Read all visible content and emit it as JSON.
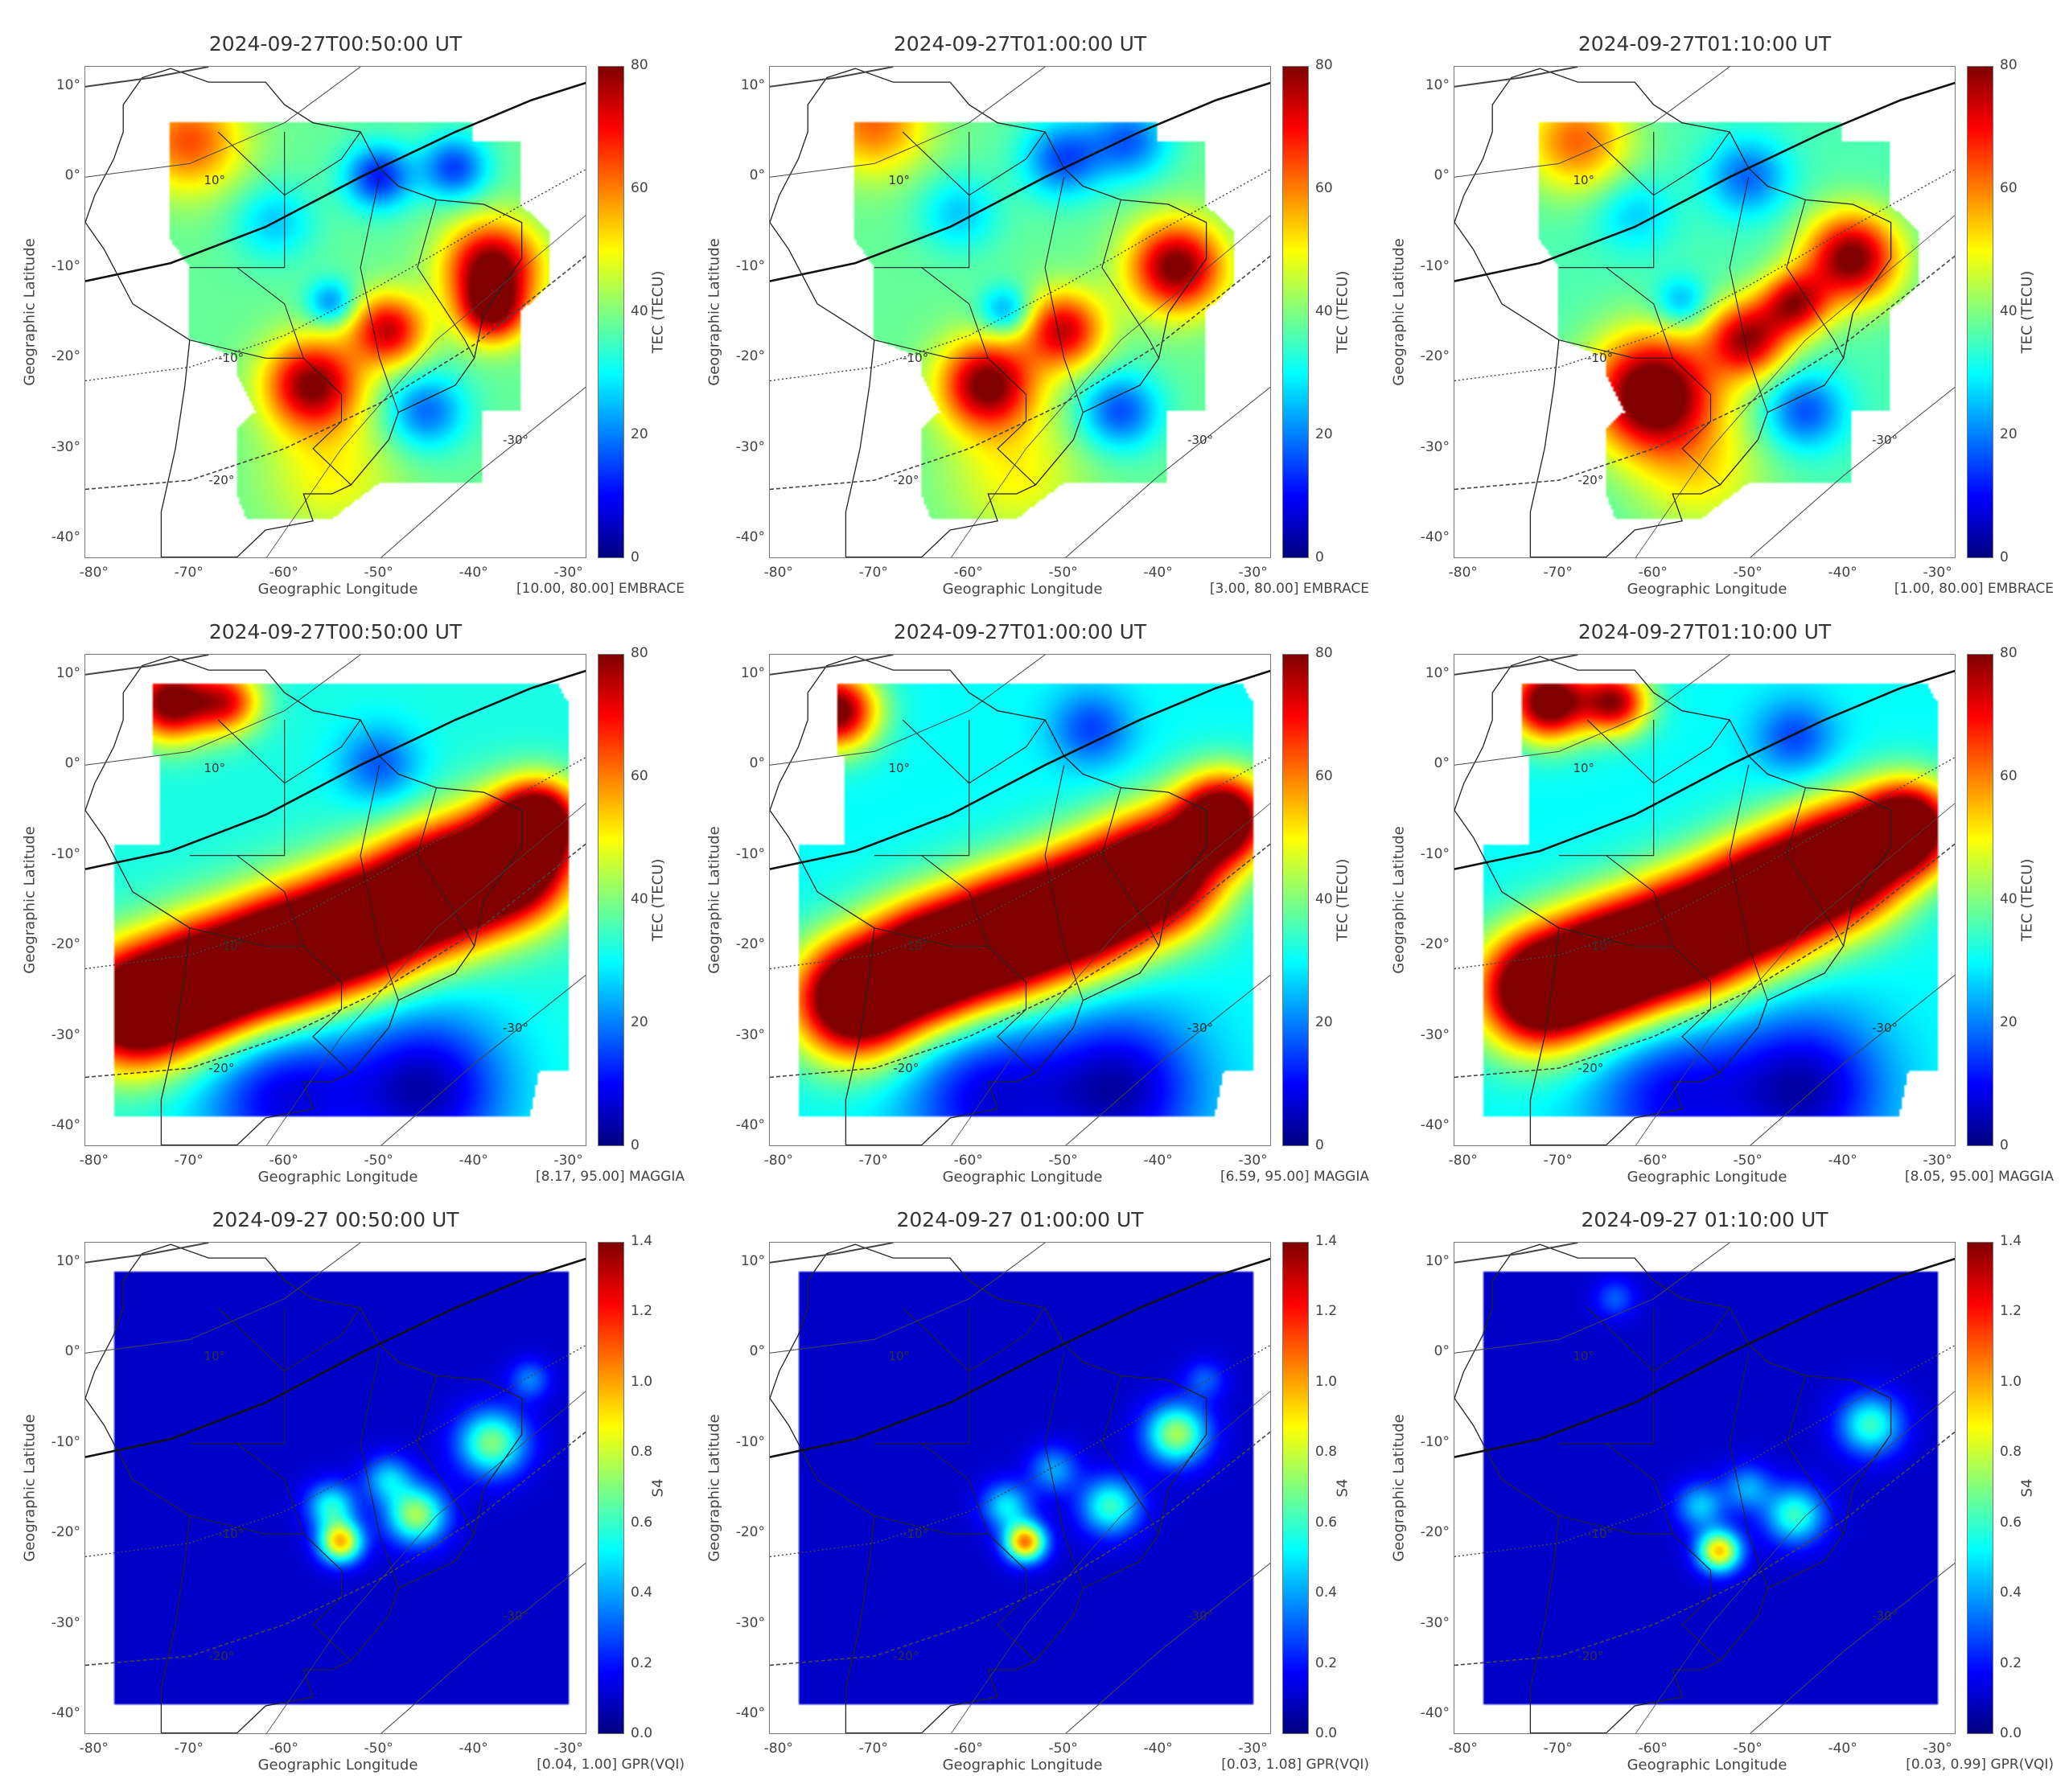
{
  "axes": {
    "xlabel": "Geographic Longitude",
    "ylabel": "Geographic Latitude",
    "lon_ticks": [
      "-80°",
      "-70°",
      "-60°",
      "-50°",
      "-40°",
      "-30°"
    ],
    "lat_ticks": [
      "10°",
      "0°",
      "-10°",
      "-20°",
      "-30°",
      "-40°"
    ],
    "contour_labels": [
      "10°",
      "-10°",
      "-20°",
      "-30°"
    ]
  },
  "colors": {
    "colormap": "jet",
    "coast": "#222222",
    "mag_equator": "#111111"
  },
  "panels": [
    {
      "title": "2024-09-27T00:50:00 UT",
      "cbar_label": "TEC (TECU)",
      "cbar_ticks": [
        "0",
        "20",
        "40",
        "60",
        "80"
      ],
      "vmax": 80,
      "annotation": "[10.00, 80.00] EMBRACE",
      "region": "embrace",
      "base": 38,
      "hotspots": [
        [
          -38,
          -10,
          82,
          3.5
        ],
        [
          -57,
          -23,
          80,
          3.5
        ],
        [
          -49,
          -17,
          74,
          2.8
        ],
        [
          -70,
          4,
          64,
          4
        ],
        [
          -45,
          -26,
          18,
          3
        ],
        [
          -55,
          -14,
          20,
          1.8
        ],
        [
          -50,
          0,
          12,
          2.5
        ],
        [
          -42,
          1,
          15,
          2.5
        ],
        [
          -61,
          -5,
          26,
          3
        ],
        [
          -55,
          -33,
          50,
          5
        ],
        [
          -38,
          -15,
          72,
          2.5
        ]
      ]
    },
    {
      "title": "2024-09-27T01:00:00 UT",
      "cbar_label": "TEC (TECU)",
      "cbar_ticks": [
        "0",
        "20",
        "40",
        "60",
        "80"
      ],
      "vmax": 80,
      "annotation": "[3.00, 80.00] EMBRACE",
      "region": "embrace",
      "base": 38,
      "hotspots": [
        [
          -38,
          -10,
          82,
          3.5
        ],
        [
          -58,
          -23,
          82,
          3.5
        ],
        [
          -50,
          -17,
          74,
          3
        ],
        [
          -70,
          6,
          62,
          4
        ],
        [
          -44,
          -26,
          16,
          3
        ],
        [
          -56,
          -15,
          20,
          2
        ],
        [
          -50,
          2,
          16,
          3
        ],
        [
          -43,
          4,
          18,
          3
        ],
        [
          -61,
          -4,
          26,
          3
        ],
        [
          -55,
          -33,
          50,
          5
        ]
      ]
    },
    {
      "title": "2024-09-27T01:10:00 UT",
      "cbar_label": "TEC (TECU)",
      "cbar_ticks": [
        "0",
        "20",
        "40",
        "60",
        "80"
      ],
      "vmax": 80,
      "annotation": "[1.00, 80.00] EMBRACE",
      "region": "embrace",
      "base": 36,
      "hotspots": [
        [
          -39,
          -9,
          82,
          3.5
        ],
        [
          -60,
          -24,
          90,
          4.5
        ],
        [
          -50,
          -18,
          76,
          3
        ],
        [
          -68,
          4,
          62,
          4
        ],
        [
          -44,
          -26,
          16,
          3
        ],
        [
          -57,
          -14,
          22,
          2
        ],
        [
          -50,
          0,
          18,
          3
        ],
        [
          -62,
          -4,
          26,
          3
        ],
        [
          -55,
          -33,
          50,
          5
        ],
        [
          -45,
          -14,
          72,
          2.5
        ]
      ]
    },
    {
      "title": "2024-09-27T00:50:00 UT",
      "cbar_label": "TEC (TECU)",
      "cbar_ticks": [
        "0",
        "20",
        "40",
        "60",
        "80"
      ],
      "vmax": 95,
      "annotation": "[8.17, 95.00] MAGGIA",
      "region": "maggia",
      "base": 38,
      "hotspots": [
        [
          -76,
          -27,
          120,
          4.5
        ],
        [
          -68,
          -24,
          120,
          4.5
        ],
        [
          -60,
          -21,
          120,
          4.5
        ],
        [
          -52,
          -18,
          120,
          4.5
        ],
        [
          -44,
          -14,
          120,
          4.5
        ],
        [
          -36,
          -11,
          120,
          4.5
        ],
        [
          -33,
          -6,
          95,
          3
        ],
        [
          -72,
          7,
          100,
          3
        ],
        [
          -66,
          7,
          80,
          2.5
        ],
        [
          -45,
          -36,
          5,
          6
        ],
        [
          -60,
          -37,
          10,
          6
        ],
        [
          -50,
          0,
          20,
          3
        ]
      ]
    },
    {
      "title": "2024-09-27T01:00:00 UT",
      "cbar_label": "TEC (TECU)",
      "cbar_ticks": [
        "0",
        "20",
        "40",
        "60",
        "80"
      ],
      "vmax": 95,
      "annotation": "[6.59, 95.00] MAGGIA",
      "region": "maggia",
      "base": 36,
      "hotspots": [
        [
          -72,
          -26,
          120,
          4.5
        ],
        [
          -64,
          -22,
          120,
          4.5
        ],
        [
          -56,
          -19,
          120,
          4.5
        ],
        [
          -48,
          -16,
          120,
          4.5
        ],
        [
          -40,
          -12,
          120,
          4.5
        ],
        [
          -33,
          -6,
          110,
          3.5
        ],
        [
          -74,
          6,
          100,
          3
        ],
        [
          -44,
          -36,
          5,
          6
        ],
        [
          -58,
          -37,
          10,
          6
        ],
        [
          -47,
          4,
          18,
          3
        ]
      ]
    },
    {
      "title": "2024-09-27T01:10:00 UT",
      "cbar_label": "TEC (TECU)",
      "cbar_ticks": [
        "0",
        "20",
        "40",
        "60",
        "80"
      ],
      "vmax": 95,
      "annotation": "[8.05, 95.00] MAGGIA",
      "region": "maggia",
      "base": 36,
      "hotspots": [
        [
          -72,
          -25,
          120,
          4.5
        ],
        [
          -64,
          -22,
          120,
          4.5
        ],
        [
          -56,
          -19,
          120,
          4.5
        ],
        [
          -48,
          -15,
          120,
          4.5
        ],
        [
          -40,
          -11,
          120,
          4.5
        ],
        [
          -33,
          -7,
          115,
          3.5
        ],
        [
          -71,
          7,
          105,
          3
        ],
        [
          -64,
          7,
          90,
          2.5
        ],
        [
          -44,
          -36,
          5,
          6
        ],
        [
          -58,
          -37,
          12,
          6
        ],
        [
          -45,
          3,
          18,
          3
        ]
      ]
    },
    {
      "title": "2024-09-27 00:50:00 UT",
      "cbar_label": "S4",
      "cbar_ticks": [
        "0.0",
        "0.2",
        "0.4",
        "0.6",
        "0.8",
        "1.0",
        "1.2",
        "1.4"
      ],
      "vmax": 1.4,
      "annotation": "[0.04, 1.00] GPR(VQI)",
      "region": "gpr",
      "base": 0.1,
      "hotspots": [
        [
          -54,
          -21,
          0.95,
          1.6
        ],
        [
          -55,
          -17,
          0.55,
          1.8
        ],
        [
          -46,
          -18,
          0.75,
          2.2
        ],
        [
          -49,
          -14,
          0.45,
          1.8
        ],
        [
          -38,
          -10,
          0.7,
          2.5
        ],
        [
          -34,
          -3,
          0.35,
          1.5
        ]
      ]
    },
    {
      "title": "2024-09-27 01:00:00 UT",
      "cbar_label": "S4",
      "cbar_ticks": [
        "0.0",
        "0.2",
        "0.4",
        "0.6",
        "0.8",
        "1.0",
        "1.2",
        "1.4"
      ],
      "vmax": 1.4,
      "annotation": "[0.03, 1.08] GPR(VQI)",
      "region": "gpr",
      "base": 0.1,
      "hotspots": [
        [
          -54,
          -21,
          1.05,
          1.5
        ],
        [
          -56,
          -17,
          0.5,
          1.8
        ],
        [
          -45,
          -17,
          0.6,
          2.2
        ],
        [
          -51,
          -13,
          0.4,
          1.8
        ],
        [
          -38,
          -9,
          0.75,
          2.3
        ],
        [
          -35,
          -3,
          0.3,
          1.5
        ]
      ]
    },
    {
      "title": "2024-09-27 01:10:00 UT",
      "cbar_label": "S4",
      "cbar_ticks": [
        "0.0",
        "0.2",
        "0.4",
        "0.6",
        "0.8",
        "1.0",
        "1.2",
        "1.4"
      ],
      "vmax": 1.4,
      "annotation": "[0.03, 0.99] GPR(VQI)",
      "region": "gpr",
      "base": 0.1,
      "hotspots": [
        [
          -53,
          -22,
          0.95,
          1.6
        ],
        [
          -55,
          -17,
          0.45,
          1.8
        ],
        [
          -45,
          -18,
          0.6,
          2.2
        ],
        [
          -50,
          -15,
          0.4,
          1.8
        ],
        [
          -37,
          -8,
          0.6,
          2.3
        ],
        [
          -64,
          6,
          0.3,
          1.5
        ]
      ]
    }
  ]
}
